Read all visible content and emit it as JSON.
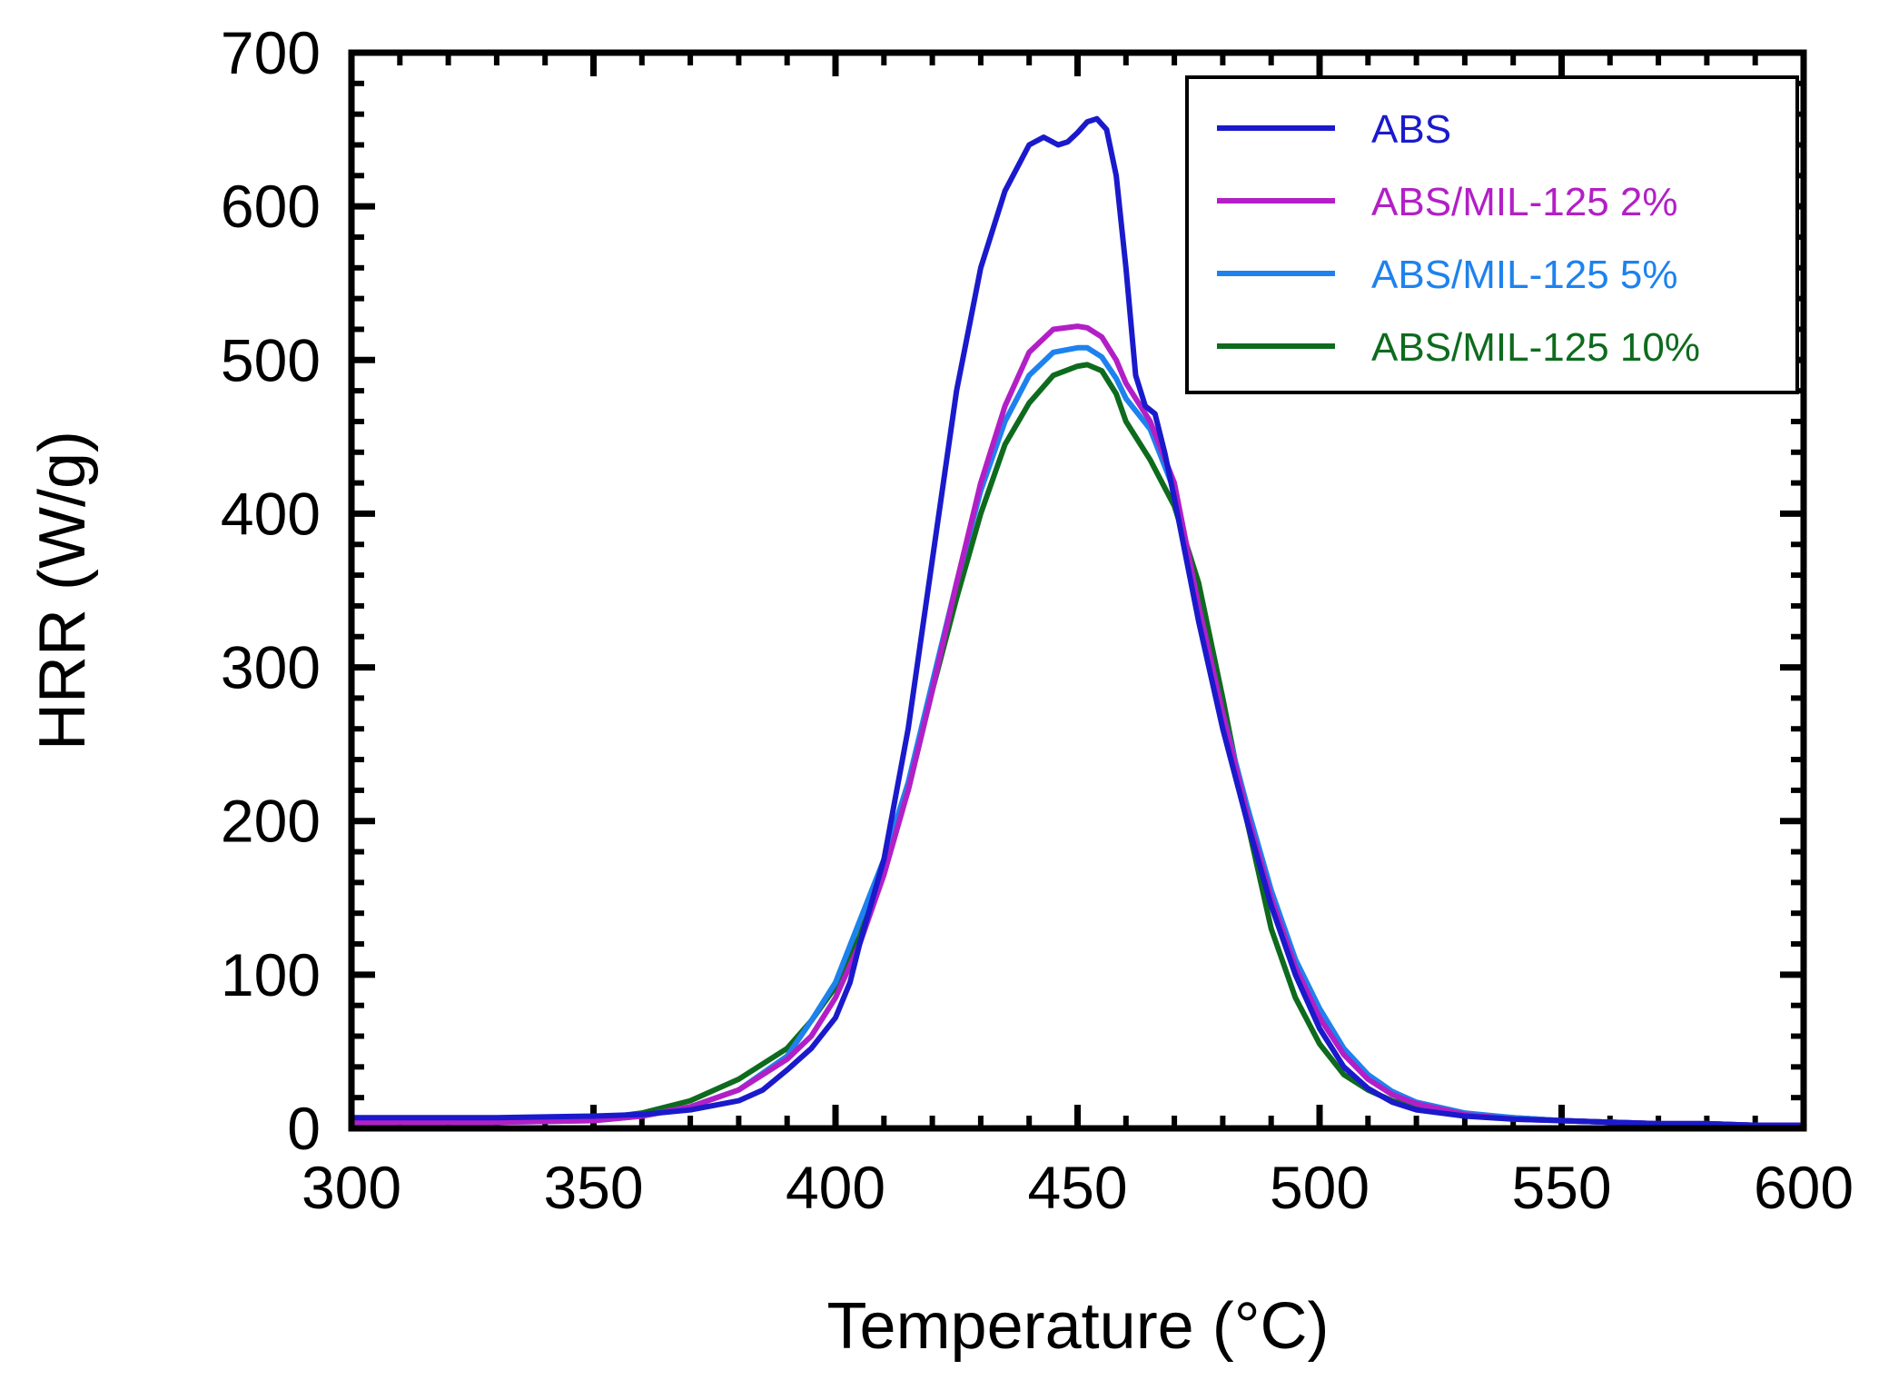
{
  "chart_data": {
    "type": "line",
    "title": "",
    "xlabel": "Temperature (°C)",
    "ylabel": "HRR (W/g)",
    "xlim": [
      300,
      600
    ],
    "ylim": [
      0,
      700
    ],
    "x_ticks": [
      300,
      350,
      400,
      450,
      500,
      550,
      600
    ],
    "y_ticks": [
      0,
      100,
      200,
      300,
      400,
      500,
      600,
      700
    ],
    "grid": false,
    "legend_position": "top-right",
    "series": [
      {
        "name": "ABS",
        "color": "#1a1acc",
        "x": [
          300,
          330,
          350,
          360,
          370,
          380,
          385,
          390,
          395,
          400,
          403,
          405,
          410,
          415,
          420,
          425,
          430,
          435,
          440,
          443,
          446,
          448,
          450,
          452,
          454,
          456,
          458,
          460,
          462,
          464,
          466,
          468,
          470,
          475,
          480,
          485,
          490,
          495,
          500,
          505,
          510,
          515,
          520,
          530,
          540,
          550,
          560,
          570,
          580,
          590,
          600
        ],
        "y": [
          7,
          7,
          8,
          9,
          12,
          18,
          25,
          38,
          52,
          72,
          95,
          120,
          175,
          260,
          370,
          480,
          560,
          610,
          640,
          645,
          640,
          642,
          648,
          655,
          657,
          650,
          620,
          560,
          490,
          470,
          465,
          440,
          410,
          330,
          260,
          200,
          145,
          100,
          65,
          40,
          26,
          17,
          12,
          8,
          6,
          5,
          4,
          3,
          3,
          2,
          2
        ]
      },
      {
        "name": "ABS/MIL-125 2%",
        "color": "#b31fc6",
        "x": [
          300,
          330,
          350,
          360,
          370,
          380,
          390,
          395,
          400,
          405,
          410,
          415,
          420,
          425,
          430,
          435,
          440,
          445,
          450,
          452,
          455,
          458,
          460,
          465,
          470,
          475,
          480,
          485,
          490,
          495,
          500,
          505,
          510,
          515,
          520,
          530,
          540,
          550,
          560,
          570,
          580,
          590,
          600
        ],
        "y": [
          4,
          4,
          5,
          8,
          14,
          25,
          45,
          60,
          85,
          120,
          165,
          220,
          285,
          355,
          420,
          470,
          505,
          520,
          522,
          521,
          515,
          500,
          485,
          460,
          420,
          340,
          270,
          205,
          150,
          105,
          72,
          48,
          32,
          22,
          16,
          9,
          6,
          5,
          4,
          3,
          3,
          2,
          2
        ]
      },
      {
        "name": "ABS/MIL-125 5%",
        "color": "#1e82ee",
        "x": [
          300,
          330,
          350,
          360,
          370,
          380,
          390,
          395,
          400,
          405,
          410,
          415,
          420,
          425,
          430,
          435,
          440,
          445,
          450,
          452,
          455,
          458,
          460,
          465,
          470,
          475,
          480,
          485,
          490,
          495,
          500,
          505,
          510,
          515,
          520,
          530,
          540,
          550,
          560,
          570,
          580,
          590,
          600
        ],
        "y": [
          4,
          4,
          5,
          8,
          14,
          25,
          47,
          70,
          95,
          135,
          175,
          225,
          290,
          355,
          415,
          460,
          490,
          505,
          508,
          508,
          502,
          488,
          475,
          455,
          415,
          340,
          270,
          210,
          155,
          110,
          78,
          52,
          35,
          24,
          17,
          10,
          7,
          5,
          4,
          3,
          3,
          2,
          2
        ]
      },
      {
        "name": "ABS/MIL-125 10%",
        "color": "#0e6b1e",
        "x": [
          300,
          330,
          350,
          360,
          370,
          380,
          390,
          395,
          400,
          405,
          410,
          415,
          420,
          425,
          430,
          435,
          440,
          445,
          450,
          452,
          455,
          458,
          460,
          465,
          470,
          475,
          480,
          485,
          490,
          495,
          500,
          505,
          510,
          515,
          520,
          530,
          540,
          550,
          560,
          570,
          580,
          590,
          600
        ],
        "y": [
          4,
          4,
          6,
          10,
          18,
          32,
          52,
          70,
          92,
          125,
          170,
          220,
          285,
          345,
          400,
          445,
          472,
          490,
          496,
          497,
          493,
          478,
          460,
          435,
          405,
          355,
          280,
          200,
          130,
          85,
          55,
          35,
          25,
          18,
          14,
          9,
          7,
          5,
          4,
          3,
          3,
          2,
          2
        ]
      }
    ]
  }
}
